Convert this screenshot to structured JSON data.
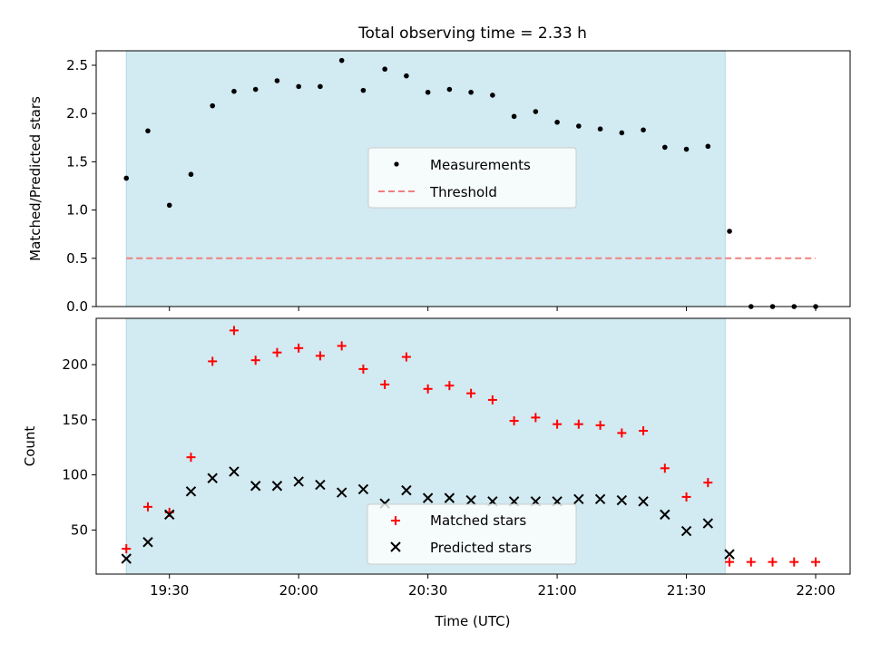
{
  "figure_title": "Total observing time = 2.33 h",
  "colors": {
    "span": "#add8e6",
    "measurement": "#000000",
    "threshold": "#f08080",
    "matched": "#ff0000",
    "predicted": "#000000"
  },
  "chart_data": [
    {
      "type": "scatter",
      "title": "Total observing time = 2.33 h",
      "ylabel": "Matched/Predicted stars",
      "xlabel": "",
      "x_range": [
        "19:13",
        "22:08"
      ],
      "ylim": [
        0,
        2.65
      ],
      "yticks": [
        0.0,
        0.5,
        1.0,
        1.5,
        2.0,
        2.5
      ],
      "ytick_labels": [
        "0.0",
        "0.5",
        "1.0",
        "1.5",
        "2.0",
        "2.5"
      ],
      "observing_window": [
        "19:20",
        "21:39"
      ],
      "legend_position": "center",
      "legend": [
        "Measurements",
        "Threshold"
      ],
      "series": [
        {
          "name": "Measurements",
          "marker": "dot",
          "x": [
            "19:20",
            "19:25",
            "19:30",
            "19:35",
            "19:40",
            "19:45",
            "19:50",
            "19:55",
            "20:00",
            "20:05",
            "20:10",
            "20:15",
            "20:20",
            "20:25",
            "20:30",
            "20:35",
            "20:40",
            "20:45",
            "20:50",
            "20:55",
            "21:00",
            "21:05",
            "21:10",
            "21:15",
            "21:20",
            "21:25",
            "21:30",
            "21:35",
            "21:40",
            "21:45",
            "21:50",
            "21:55",
            "22:00"
          ],
          "values": [
            1.33,
            1.82,
            1.05,
            1.37,
            2.08,
            2.23,
            2.25,
            2.34,
            2.28,
            2.28,
            2.55,
            2.24,
            2.46,
            2.39,
            2.22,
            2.25,
            2.22,
            2.19,
            1.97,
            2.02,
            1.91,
            1.87,
            1.84,
            1.8,
            1.83,
            1.65,
            1.63,
            1.66,
            0.78,
            0.0,
            0.0,
            0.0,
            0.0
          ]
        },
        {
          "name": "Threshold",
          "line": "dashed",
          "x": [
            "19:20",
            "22:00"
          ],
          "values": [
            0.5,
            0.5
          ]
        }
      ]
    },
    {
      "type": "scatter",
      "title": "",
      "ylabel": "Count",
      "xlabel": "Time (UTC)",
      "x_range": [
        "19:13",
        "22:08"
      ],
      "xticks": [
        "19:30",
        "20:00",
        "20:30",
        "21:00",
        "21:30",
        "22:00"
      ],
      "ylim": [
        10,
        242
      ],
      "yticks": [
        50,
        100,
        150,
        200
      ],
      "observing_window": [
        "19:20",
        "21:39"
      ],
      "legend_position": "bottom-center",
      "legend": [
        "Matched stars",
        "Predicted stars"
      ],
      "series": [
        {
          "name": "Matched stars",
          "marker": "plus",
          "x": [
            "19:20",
            "19:25",
            "19:30",
            "19:35",
            "19:40",
            "19:45",
            "19:50",
            "19:55",
            "20:00",
            "20:05",
            "20:10",
            "20:15",
            "20:20",
            "20:25",
            "20:30",
            "20:35",
            "20:40",
            "20:45",
            "20:50",
            "20:55",
            "21:00",
            "21:05",
            "21:10",
            "21:15",
            "21:20",
            "21:25",
            "21:30",
            "21:35",
            "21:40",
            "21:45",
            "21:50",
            "21:55",
            "22:00"
          ],
          "values": [
            33,
            71,
            66,
            116,
            203,
            231,
            204,
            211,
            215,
            208,
            217,
            196,
            182,
            207,
            178,
            181,
            174,
            168,
            149,
            152,
            146,
            146,
            145,
            138,
            140,
            106,
            80,
            93,
            21,
            21,
            21,
            21,
            21
          ]
        },
        {
          "name": "Predicted stars",
          "marker": "x",
          "x": [
            "19:20",
            "19:25",
            "19:30",
            "19:35",
            "19:40",
            "19:45",
            "19:50",
            "19:55",
            "20:00",
            "20:05",
            "20:10",
            "20:15",
            "20:20",
            "20:25",
            "20:30",
            "20:35",
            "20:40",
            "20:45",
            "20:50",
            "20:55",
            "21:00",
            "21:05",
            "21:10",
            "21:15",
            "21:20",
            "21:25",
            "21:30",
            "21:35",
            "21:40"
          ],
          "values": [
            24,
            39,
            64,
            85,
            97,
            103,
            90,
            90,
            94,
            91,
            84,
            87,
            74,
            86,
            79,
            79,
            77,
            76,
            76,
            76,
            76,
            78,
            78,
            77,
            76,
            64,
            49,
            56,
            28
          ]
        }
      ]
    }
  ]
}
